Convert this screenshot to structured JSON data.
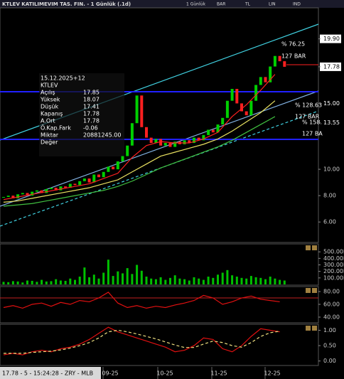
{
  "title_bar": {
    "title": "KTLEV KATILIMEVIM TAS. FIN. - 1 Günlük (.1d)",
    "toolbar": [
      "1 Günlük",
      "BAR",
      "TL",
      "LIN",
      "IND"
    ]
  },
  "info_panel": {
    "date": "15.12.2025+12",
    "symbol": "KTLEV",
    "rows": [
      {
        "label": "Açılış",
        "value": "17.85"
      },
      {
        "label": "Yüksek",
        "value": "18.07"
      },
      {
        "label": "Düşük",
        "value": "17.41"
      },
      {
        "label": "Kapanış",
        "value": "17.78"
      },
      {
        "label": "A.Ort",
        "value": "17.78"
      },
      {
        "label": "Ö.Kap.Fark",
        "value": "-0.06"
      },
      {
        "label": "Miktar",
        "value": "20881245.00"
      },
      {
        "label": "Değer"
      }
    ]
  },
  "price_panel": {
    "type": "candlestick",
    "ylim": [
      4.5,
      22.2
    ],
    "close": [
      7.9,
      8.0,
      7.8,
      8.1,
      8.2,
      8.0,
      8.3,
      8.4,
      8.2,
      8.5,
      8.6,
      8.4,
      8.7,
      8.6,
      8.9,
      8.8,
      9.1,
      9.3,
      9.0,
      9.6,
      9.4,
      9.8,
      10.2,
      10.0,
      10.6,
      11.0,
      11.8,
      13.5,
      15.6,
      13.2,
      12.4,
      12.0,
      12.3,
      11.8,
      12.0,
      11.7,
      12.1,
      11.9,
      12.2,
      12.0,
      12.4,
      12.2,
      12.6,
      13.0,
      12.8,
      13.4,
      13.9,
      15.2,
      16.1,
      15.0,
      14.4,
      14.1,
      15.2,
      16.4,
      17.0,
      16.6,
      17.8,
      18.6,
      18.2,
      17.78
    ],
    "up_color": "#00d000",
    "down_color": "#ff2020",
    "lines": [
      {
        "color": "#ff2020",
        "values": [
          7.7,
          7.9,
          8.1,
          8.3,
          8.5,
          8.7,
          8.9,
          9.3,
          9.7,
          10.9,
          11.8,
          12.1,
          12.0,
          12.0,
          12.3,
          12.8,
          14.0,
          14.9,
          16.0,
          17.2
        ]
      },
      {
        "color": "#e8e060",
        "values": [
          7.5,
          7.6,
          7.8,
          8.0,
          8.2,
          8.4,
          8.6,
          8.9,
          9.2,
          9.8,
          10.4,
          11.0,
          11.3,
          11.6,
          11.9,
          12.3,
          12.9,
          13.6,
          14.3,
          15.2
        ]
      },
      {
        "color": "#40c040",
        "values": [
          7.2,
          7.3,
          7.4,
          7.6,
          7.8,
          8.0,
          8.2,
          8.4,
          8.7,
          9.1,
          9.6,
          10.1,
          10.5,
          10.9,
          11.3,
          11.7,
          12.2,
          12.8,
          13.4,
          14.0
        ]
      }
    ],
    "yticks": [
      {
        "value": 19.9,
        "label": "19.90",
        "style": "box"
      },
      {
        "value": 17.78,
        "label": "17.78",
        "style": "box"
      },
      {
        "value": 15,
        "label": "15.00",
        "style": "cyan"
      },
      {
        "value": 13.55,
        "label": "13.55",
        "style": "cyan"
      },
      {
        "value": 10,
        "label": "10.00"
      },
      {
        "value": 8,
        "label": "8.00"
      },
      {
        "value": 6,
        "label": "6.00"
      }
    ],
    "annotations": [
      "% 76.25",
      "127 BAR",
      "% 128.63",
      "127 BAR",
      "% 158.",
      "127 BA"
    ]
  },
  "volume_panel": {
    "type": "bar",
    "color": "#00c000",
    "ylim": [
      0,
      600000000
    ],
    "values": [
      40000000,
      35000000,
      50000000,
      45000000,
      30000000,
      60000000,
      55000000,
      40000000,
      70000000,
      45000000,
      50000000,
      80000000,
      60000000,
      55000000,
      90000000,
      70000000,
      120000000,
      260000000,
      110000000,
      150000000,
      90000000,
      180000000,
      380000000,
      130000000,
      200000000,
      170000000,
      250000000,
      160000000,
      300000000,
      210000000,
      120000000,
      90000000,
      80000000,
      110000000,
      70000000,
      100000000,
      140000000,
      90000000,
      80000000,
      60000000,
      110000000,
      90000000,
      70000000,
      120000000,
      100000000,
      150000000,
      180000000,
      220000000,
      140000000,
      120000000,
      100000000,
      90000000,
      130000000,
      110000000,
      100000000,
      80000000,
      120000000,
      90000000,
      70000000,
      60000000
    ],
    "yticks": [
      {
        "value": 500000000,
        "label": "500.00M"
      },
      {
        "value": 400000000,
        "label": "400.00M"
      },
      {
        "value": 300000000,
        "label": "300.00M"
      },
      {
        "value": 200000000,
        "label": "200.00M"
      },
      {
        "value": 100000000,
        "label": "100.00M"
      }
    ]
  },
  "rsi_panel": {
    "type": "line",
    "color": "#e01010",
    "ylim": [
      33.3,
      85.6
    ],
    "values": [
      55,
      58,
      54,
      60,
      62,
      57,
      63,
      60,
      66,
      64,
      70,
      79,
      62,
      55,
      58,
      54,
      57,
      55,
      59,
      62,
      66,
      74,
      70,
      60,
      64,
      70,
      73,
      68,
      66,
      64
    ],
    "yticks": [
      {
        "value": 80,
        "label": "80.00"
      },
      {
        "value": 60,
        "label": "60.00"
      },
      {
        "value": 40,
        "label": "40.00"
      }
    ]
  },
  "osc_panel": {
    "type": "line",
    "ylim": [
      -0.1,
      1.15
    ],
    "series": [
      {
        "color": "#e01010",
        "values": [
          0.2,
          0.25,
          0.2,
          0.3,
          0.35,
          0.3,
          0.4,
          0.45,
          0.55,
          0.7,
          0.9,
          1.1,
          0.95,
          0.85,
          0.75,
          0.65,
          0.55,
          0.45,
          0.3,
          0.35,
          0.5,
          0.75,
          0.7,
          0.4,
          0.3,
          0.5,
          0.8,
          1.05,
          1.0,
          0.95
        ]
      },
      {
        "color": "#f0e080",
        "dashed": true,
        "values": [
          0.25,
          0.25,
          0.25,
          0.28,
          0.3,
          0.32,
          0.36,
          0.42,
          0.5,
          0.6,
          0.75,
          0.95,
          1.0,
          0.95,
          0.88,
          0.8,
          0.72,
          0.62,
          0.52,
          0.44,
          0.44,
          0.55,
          0.65,
          0.6,
          0.5,
          0.45,
          0.6,
          0.8,
          0.92,
          0.97
        ]
      }
    ],
    "yticks": [
      {
        "value": 1,
        "label": "1.00"
      },
      {
        "value": 0.5,
        "label": "0.50"
      },
      {
        "value": 0,
        "label": "0.00"
      }
    ]
  },
  "x_labels": [
    "09-25",
    "10-25",
    "11-25",
    "12-25"
  ],
  "status_bar": "17.78 - 5 - 15:24:28 - ZRY - MLB"
}
